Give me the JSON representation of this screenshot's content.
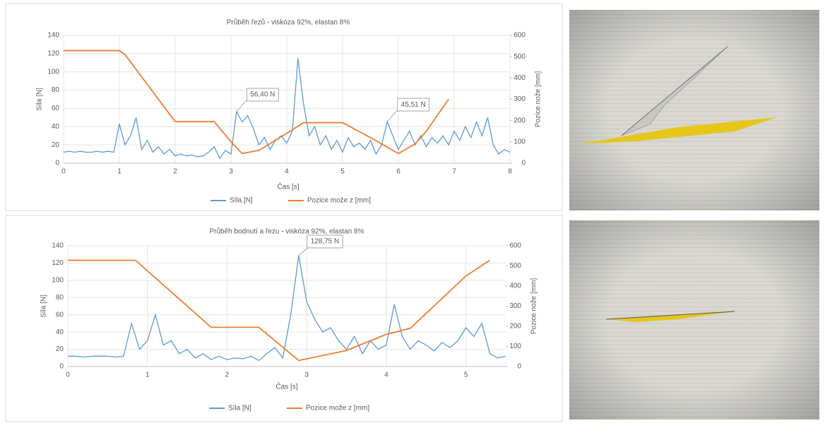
{
  "chart_data": [
    {
      "type": "line",
      "title": "Průběh řezů - viskóza 92%, elastan 8%",
      "x_label": "Čas [s]",
      "y_label": "Síla [N]",
      "y2_label": "Pozice nože [mm]",
      "xlim": [
        0,
        8
      ],
      "xticks": [
        0,
        1,
        2,
        3,
        4,
        5,
        6,
        7,
        8
      ],
      "ylim": [
        0,
        140
      ],
      "yticks": [
        0,
        20,
        40,
        60,
        80,
        100,
        120,
        140
      ],
      "y2lim": [
        0,
        600
      ],
      "y2ticks": [
        0,
        100,
        200,
        300,
        400,
        500,
        600
      ],
      "grid": true,
      "series": [
        {
          "name": "Síla [N]",
          "color": "#5b9bd5",
          "x": [
            0,
            0.1,
            0.2,
            0.3,
            0.4,
            0.5,
            0.6,
            0.7,
            0.8,
            0.9,
            1,
            1.1,
            1.2,
            1.3,
            1.4,
            1.5,
            1.6,
            1.7,
            1.8,
            1.9,
            2,
            2.1,
            2.2,
            2.3,
            2.4,
            2.5,
            2.6,
            2.7,
            2.8,
            2.9,
            3,
            3.1,
            3.2,
            3.3,
            3.4,
            3.5,
            3.6,
            3.7,
            3.8,
            3.9,
            4,
            4.1,
            4.2,
            4.3,
            4.4,
            4.5,
            4.6,
            4.7,
            4.8,
            4.9,
            5,
            5.1,
            5.2,
            5.3,
            5.4,
            5.5,
            5.6,
            5.7,
            5.8,
            5.9,
            6,
            6.1,
            6.2,
            6.3,
            6.4,
            6.5,
            6.6,
            6.7,
            6.8,
            6.9,
            7,
            7.1,
            7.2,
            7.3,
            7.4,
            7.5,
            7.6,
            7.7,
            7.8,
            7.9,
            8
          ],
          "values": [
            12,
            13,
            12,
            13,
            12,
            12,
            13,
            12,
            13,
            12,
            43,
            20,
            30,
            50,
            15,
            25,
            12,
            18,
            10,
            15,
            8,
            10,
            8,
            9,
            7,
            8,
            12,
            18,
            5,
            14,
            10,
            56.4,
            45,
            52,
            38,
            20,
            28,
            15,
            25,
            30,
            22,
            35,
            115,
            65,
            30,
            40,
            20,
            30,
            15,
            25,
            12,
            28,
            18,
            22,
            15,
            25,
            10,
            20,
            45.51,
            30,
            15,
            25,
            35,
            20,
            30,
            18,
            28,
            22,
            30,
            20,
            35,
            25,
            40,
            28,
            45,
            30,
            50,
            20,
            10,
            15,
            12
          ]
        },
        {
          "name": "Pozice može z [mm]",
          "color": "#ed7d31",
          "axis": "y2",
          "x": [
            0,
            1,
            1.1,
            2,
            2.7,
            3,
            3.2,
            3.5,
            4,
            4.3,
            5,
            5.5,
            6,
            6.3,
            6.5,
            6.9
          ],
          "values": [
            528,
            528,
            510,
            195,
            195,
            100,
            45,
            60,
            140,
            190,
            190,
            120,
            45,
            90,
            150,
            300
          ]
        }
      ],
      "annotations": [
        {
          "x": 3.1,
          "y": 56.4,
          "label": "56,40 N"
        },
        {
          "x": 5.8,
          "y": 45.51,
          "label": "45,51 N"
        }
      ]
    },
    {
      "type": "line",
      "title": "Průběh bodnutí a řezu - viskóza 92%, elastan 8%",
      "x_label": "Čas [s]",
      "y_label": "Síla [N]",
      "y2_label": "Pozice nože [mm]",
      "xlim": [
        0,
        5.5
      ],
      "xticks": [
        0,
        1,
        2,
        3,
        4,
        5
      ],
      "ylim": [
        0,
        140
      ],
      "yticks": [
        0,
        20,
        40,
        60,
        80,
        100,
        120,
        140
      ],
      "y2lim": [
        0,
        600
      ],
      "y2ticks": [
        0,
        100,
        200,
        300,
        400,
        500,
        600
      ],
      "grid": true,
      "series": [
        {
          "name": "Síla [N]",
          "color": "#5b9bd5",
          "x": [
            0,
            0.1,
            0.2,
            0.3,
            0.4,
            0.5,
            0.6,
            0.7,
            0.8,
            0.9,
            1,
            1.1,
            1.2,
            1.3,
            1.4,
            1.5,
            1.6,
            1.7,
            1.8,
            1.9,
            2,
            2.1,
            2.2,
            2.3,
            2.4,
            2.5,
            2.6,
            2.7,
            2.8,
            2.9,
            3,
            3.1,
            3.2,
            3.3,
            3.4,
            3.5,
            3.6,
            3.7,
            3.8,
            3.9,
            4,
            4.1,
            4.2,
            4.3,
            4.4,
            4.5,
            4.6,
            4.7,
            4.8,
            4.9,
            5,
            5.1,
            5.2,
            5.3,
            5.4,
            5.5
          ],
          "values": [
            12,
            12,
            11,
            12,
            12,
            12,
            11,
            12,
            50,
            20,
            30,
            60,
            25,
            30,
            15,
            20,
            10,
            15,
            8,
            12,
            8,
            10,
            9,
            12,
            7,
            15,
            22,
            10,
            60,
            128.75,
            75,
            55,
            40,
            45,
            30,
            20,
            35,
            15,
            30,
            20,
            25,
            72,
            35,
            20,
            30,
            25,
            18,
            28,
            22,
            30,
            45,
            35,
            50,
            15,
            10,
            12
          ]
        },
        {
          "name": "Pozice može z [mm]",
          "color": "#ed7d31",
          "axis": "y2",
          "x": [
            0,
            0.85,
            1.8,
            2.4,
            2.9,
            3.5,
            4,
            4.3,
            5,
            5.3
          ],
          "values": [
            528,
            528,
            195,
            195,
            30,
            80,
            160,
            190,
            450,
            528
          ]
        }
      ],
      "annotations": [
        {
          "x": 2.9,
          "y": 128.75,
          "label": "128,75 N"
        }
      ]
    }
  ]
}
